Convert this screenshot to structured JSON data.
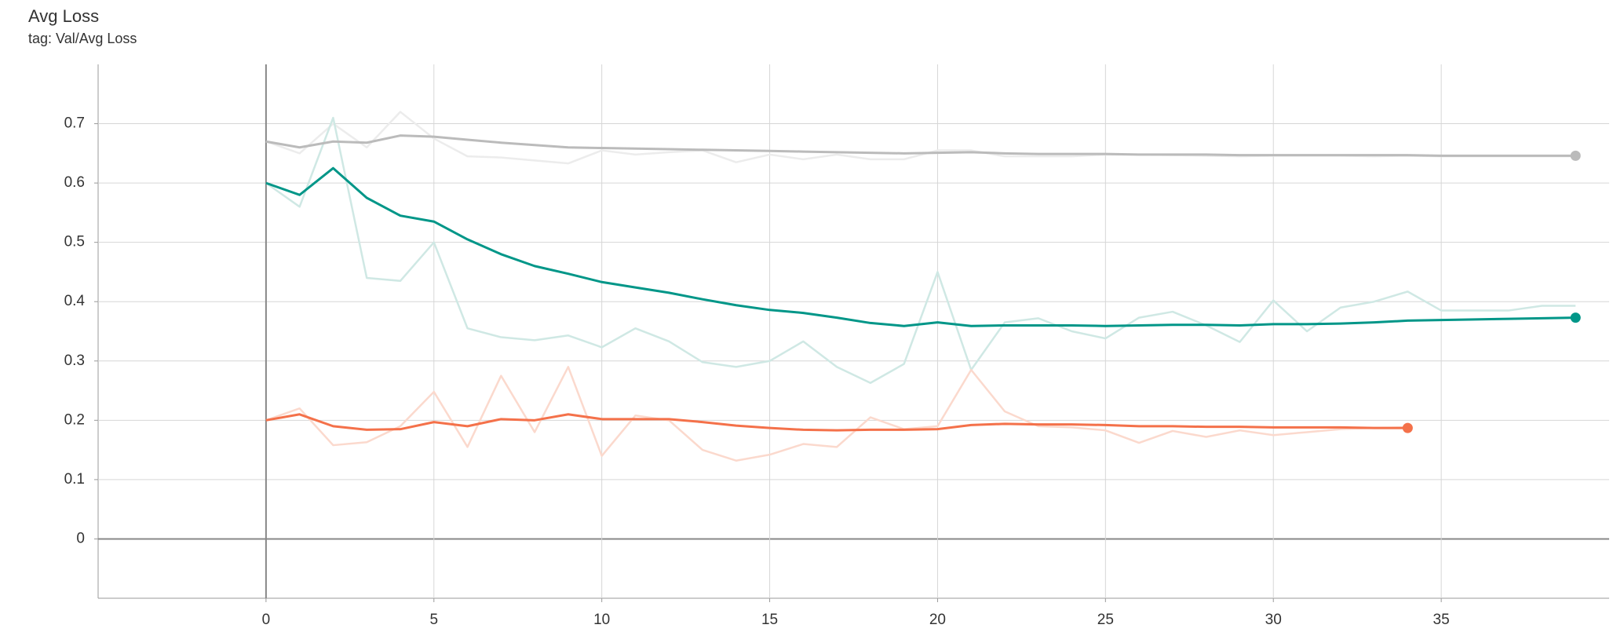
{
  "chart_data": {
    "type": "line",
    "title": "Avg Loss",
    "subtitle": "tag: Val/Avg Loss",
    "x": [
      0,
      1,
      2,
      3,
      4,
      5,
      6,
      7,
      8,
      9,
      10,
      11,
      12,
      13,
      14,
      15,
      16,
      17,
      18,
      19,
      20,
      21,
      22,
      23,
      24,
      25,
      26,
      27,
      28,
      29,
      30,
      31,
      32,
      33,
      34,
      35,
      36,
      37,
      38,
      39
    ],
    "xlim": [
      -5,
      40
    ],
    "xticks": [
      0,
      5,
      10,
      15,
      20,
      25,
      30,
      35
    ],
    "ylim": [
      -0.1,
      0.8
    ],
    "yticks": [
      0,
      0.1,
      0.2,
      0.3,
      0.4,
      0.5,
      0.6,
      0.7
    ],
    "grid": true,
    "series": [
      {
        "color": "#ececec",
        "values": [
          0.67,
          0.65,
          0.7,
          0.66,
          0.72,
          0.675,
          0.645,
          0.643,
          0.638,
          0.633,
          0.655,
          0.648,
          0.652,
          0.655,
          0.635,
          0.648,
          0.64,
          0.648,
          0.64,
          0.64,
          0.655,
          0.655,
          0.645,
          0.645,
          0.645,
          0.648,
          0.648,
          0.647,
          0.646,
          0.645,
          0.646,
          0.646,
          0.646,
          0.645,
          0.646,
          0.645,
          0.645,
          0.645,
          0.645,
          0.645
        ]
      },
      {
        "color": "#cfe8e4",
        "values": [
          0.6,
          0.56,
          0.71,
          0.44,
          0.435,
          0.5,
          0.355,
          0.34,
          0.335,
          0.343,
          0.323,
          0.355,
          0.333,
          0.298,
          0.29,
          0.3,
          0.333,
          0.29,
          0.263,
          0.295,
          0.45,
          0.285,
          0.365,
          0.372,
          0.35,
          0.338,
          0.373,
          0.383,
          0.36,
          0.332,
          0.402,
          0.35,
          0.39,
          0.4,
          0.417,
          0.385,
          0.385,
          0.385,
          0.393,
          0.393
        ]
      },
      {
        "color": "#fbd9cd",
        "values": [
          0.2,
          0.22,
          0.158,
          0.163,
          0.19,
          0.248,
          0.155,
          0.275,
          0.18,
          0.29,
          0.14,
          0.208,
          0.2,
          0.15,
          0.132,
          0.142,
          0.16,
          0.155,
          0.205,
          0.185,
          0.19,
          0.285,
          0.215,
          0.19,
          0.188,
          0.183,
          0.162,
          0.182,
          0.172,
          0.183,
          0.175,
          0.18,
          0.185,
          0.187,
          0.188,
          null,
          null,
          null,
          null,
          null
        ]
      },
      {
        "color": "#bbbbbb",
        "end_marker": true,
        "values": [
          0.67,
          0.66,
          0.67,
          0.668,
          0.68,
          0.678,
          0.673,
          0.668,
          0.664,
          0.66,
          0.659,
          0.658,
          0.657,
          0.656,
          0.655,
          0.654,
          0.653,
          0.652,
          0.651,
          0.65,
          0.651,
          0.652,
          0.65,
          0.649,
          0.649,
          0.649,
          0.648,
          0.648,
          0.648,
          0.647,
          0.647,
          0.647,
          0.647,
          0.647,
          0.647,
          0.646,
          0.646,
          0.646,
          0.646,
          0.646
        ]
      },
      {
        "color": "#009688",
        "end_marker": true,
        "values": [
          0.6,
          0.58,
          0.625,
          0.575,
          0.545,
          0.535,
          0.505,
          0.48,
          0.46,
          0.447,
          0.433,
          0.424,
          0.415,
          0.404,
          0.394,
          0.386,
          0.381,
          0.373,
          0.364,
          0.359,
          0.365,
          0.359,
          0.36,
          0.36,
          0.36,
          0.359,
          0.36,
          0.361,
          0.361,
          0.36,
          0.362,
          0.362,
          0.363,
          0.365,
          0.368,
          0.369,
          0.37,
          0.371,
          0.372,
          0.373
        ]
      },
      {
        "color": "#f4714a",
        "end_marker": true,
        "values": [
          0.2,
          0.21,
          0.19,
          0.184,
          0.185,
          0.197,
          0.19,
          0.202,
          0.2,
          0.21,
          0.202,
          0.202,
          0.202,
          0.197,
          0.191,
          0.187,
          0.184,
          0.183,
          0.184,
          0.184,
          0.185,
          0.192,
          0.194,
          0.193,
          0.193,
          0.192,
          0.19,
          0.19,
          0.189,
          0.189,
          0.188,
          0.188,
          0.188,
          0.187,
          0.187,
          null,
          null,
          null,
          null,
          null
        ]
      }
    ]
  }
}
